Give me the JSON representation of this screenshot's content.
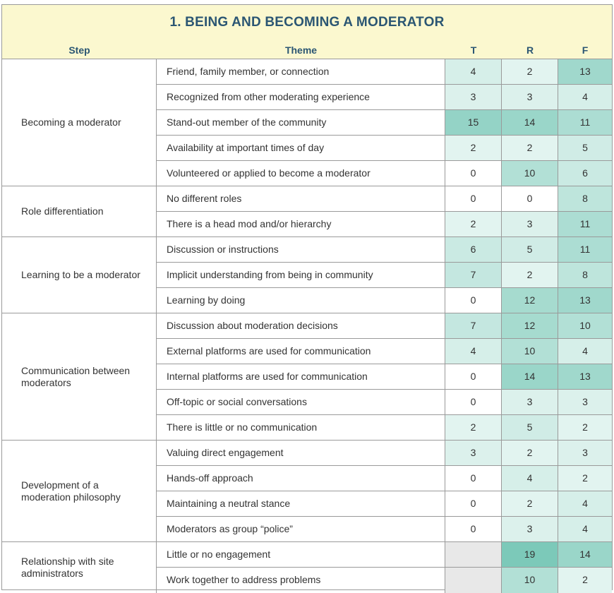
{
  "title": "1. BEING AND BECOMING A MODERATOR",
  "headers": {
    "step": "Step",
    "theme": "Theme",
    "t": "T",
    "r": "R",
    "f": "F"
  },
  "groups": [
    {
      "step": "Becoming a moderator",
      "rows": [
        {
          "theme": "Friend, family member, or connection",
          "t": "4",
          "r": "2",
          "f": "13"
        },
        {
          "theme": "Recognized from other moderating experience",
          "t": "3",
          "r": "3",
          "f": "4"
        },
        {
          "theme": "Stand-out member of the community",
          "t": "15",
          "r": "14",
          "f": "11"
        },
        {
          "theme": "Availability at important times of day",
          "t": "2",
          "r": "2",
          "f": "5"
        },
        {
          "theme": "Volunteered or applied to become a moderator",
          "t": "0",
          "r": "10",
          "f": "6"
        }
      ]
    },
    {
      "step": "Role differentiation",
      "rows": [
        {
          "theme": "No different roles",
          "t": "0",
          "r": "0",
          "f": "8"
        },
        {
          "theme": "There is a head mod and/or hierarchy",
          "t": "2",
          "r": "3",
          "f": "11"
        }
      ]
    },
    {
      "step": "Learning to be a moderator",
      "rows": [
        {
          "theme": "Discussion or instructions",
          "t": "6",
          "r": "5",
          "f": "11"
        },
        {
          "theme": "Implicit understanding from being in community",
          "t": "7",
          "r": "2",
          "f": "8"
        },
        {
          "theme": "Learning by doing",
          "t": "0",
          "r": "12",
          "f": "13"
        }
      ]
    },
    {
      "step": "Communication between moderators",
      "rows": [
        {
          "theme": "Discussion about moderation decisions",
          "t": "7",
          "r": "12",
          "f": "10"
        },
        {
          "theme": "External platforms are used for communication",
          "t": "4",
          "r": "10",
          "f": "4"
        },
        {
          "theme": "Internal platforms are used for communication",
          "t": "0",
          "r": "14",
          "f": "13"
        },
        {
          "theme": "Off-topic or social conversations",
          "t": "0",
          "r": "3",
          "f": "3"
        },
        {
          "theme": "There is little or no communication",
          "t": "2",
          "r": "5",
          "f": "2"
        }
      ]
    },
    {
      "step": "Development of a moderation philosophy",
      "rows": [
        {
          "theme": "Valuing direct engagement",
          "t": "3",
          "r": "2",
          "f": "3"
        },
        {
          "theme": "Hands-off approach",
          "t": "0",
          "r": "4",
          "f": "2"
        },
        {
          "theme": "Maintaining a neutral stance",
          "t": "0",
          "r": "2",
          "f": "4"
        },
        {
          "theme": "Moderators as group “police”",
          "t": "0",
          "r": "3",
          "f": "4"
        }
      ]
    },
    {
      "step": "Relationship with site administrators",
      "rows": [
        {
          "theme": "Little or no engagement",
          "t": "",
          "r": "19",
          "f": "14"
        },
        {
          "theme": "Work together to address problems",
          "t": "",
          "r": "10",
          "f": "2"
        }
      ]
    }
  ]
}
